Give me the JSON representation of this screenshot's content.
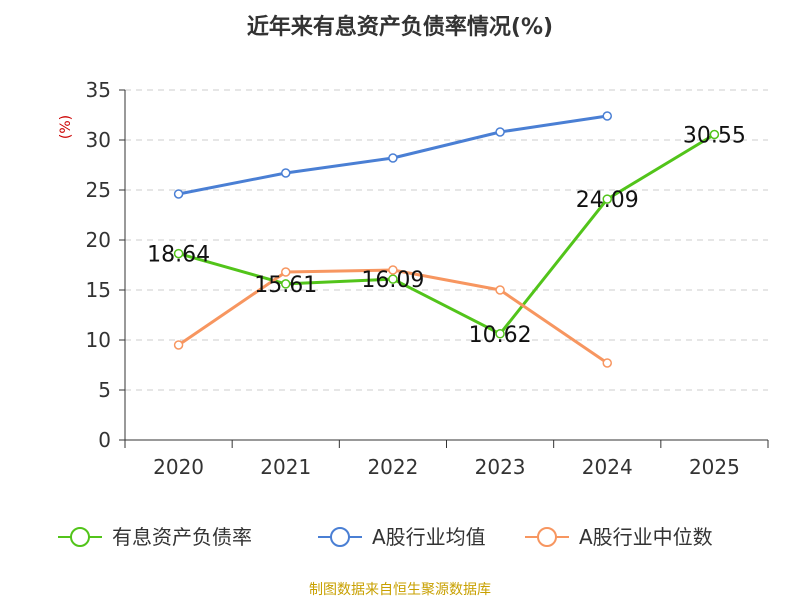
{
  "chart_data": {
    "type": "line",
    "title": "近年来有息资产负债率情况(%)",
    "ylabel": "(%)",
    "xlabel": "",
    "categories": [
      "2020",
      "2021",
      "2022",
      "2023",
      "2024",
      "2025"
    ],
    "ylim": [
      0,
      35
    ],
    "yticks": [
      0,
      5,
      10,
      15,
      20,
      25,
      30,
      35
    ],
    "grid": true,
    "legend_position": "bottom",
    "series": [
      {
        "name": "有息资产负债率",
        "color": "#52c41a",
        "values": [
          18.64,
          15.61,
          16.09,
          10.62,
          24.09,
          30.55
        ],
        "data_labels": [
          "18.64",
          "15.61",
          "16.09",
          "10.62",
          "24.09",
          "30.55"
        ]
      },
      {
        "name": "A股行业均值",
        "color": "#4a7fd4",
        "values": [
          24.6,
          26.7,
          28.2,
          30.8,
          32.4,
          null
        ]
      },
      {
        "name": "A股行业中位数",
        "color": "#f79660",
        "values": [
          9.5,
          16.8,
          17.0,
          15.0,
          7.7,
          null
        ]
      }
    ],
    "source": "制图数据来自恒生聚源数据库"
  }
}
